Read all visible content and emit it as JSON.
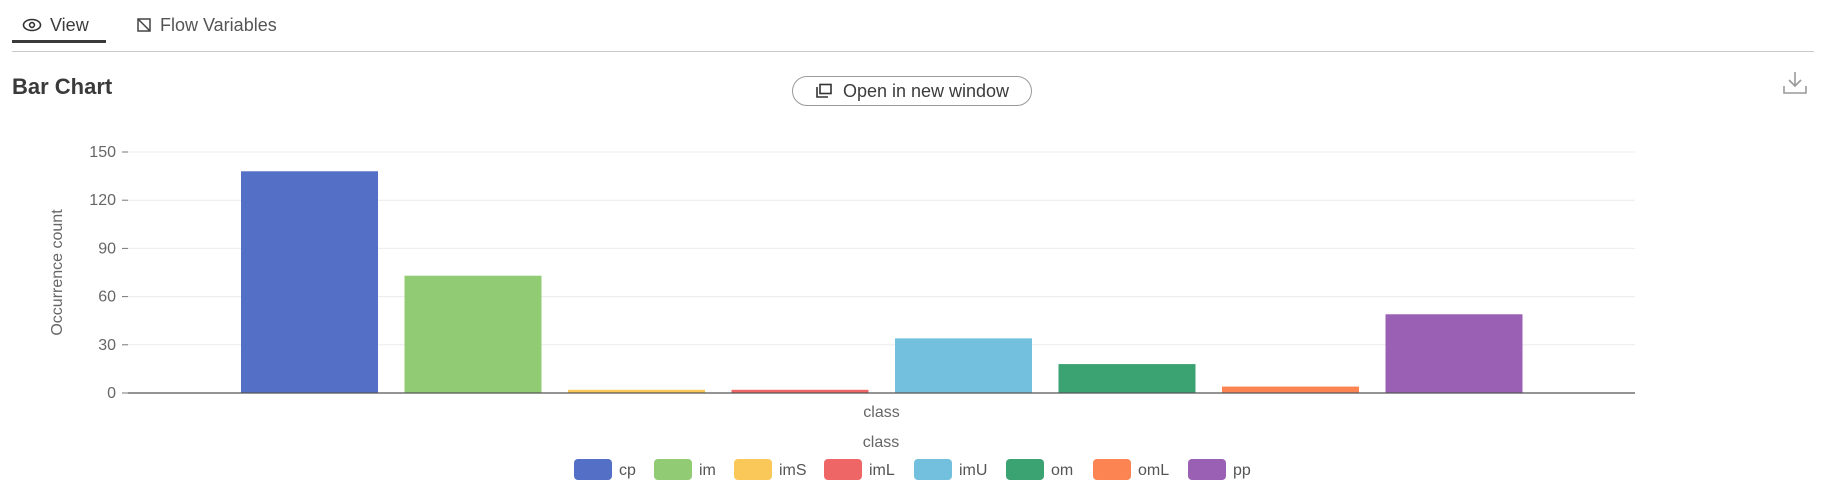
{
  "tabs": [
    {
      "label": "View",
      "icon": "eye-icon",
      "active": true
    },
    {
      "label": "Flow Variables",
      "icon": "flow-variables-icon",
      "active": false
    }
  ],
  "header": {
    "title": "Bar Chart",
    "open_button_label": "Open in new window",
    "open_button_icon": "open-window-icon",
    "download_icon": "download-icon"
  },
  "chart_data": {
    "type": "bar",
    "categories": [
      "cp",
      "im",
      "imS",
      "imL",
      "imU",
      "om",
      "omL",
      "pp"
    ],
    "values": [
      138,
      73,
      2,
      2,
      34,
      18,
      4,
      49
    ],
    "colors": [
      "#5470c6",
      "#91cc75",
      "#fac858",
      "#ee6666",
      "#73c0de",
      "#3ba272",
      "#fc8452",
      "#9a60b4"
    ],
    "xlabel": "class",
    "ylabel": "Occurrence count",
    "legend_title": "class",
    "ylim": [
      0,
      150
    ],
    "yticks": [
      0,
      30,
      60,
      90,
      120,
      150
    ],
    "grid": true,
    "legend_position": "bottom-center"
  }
}
